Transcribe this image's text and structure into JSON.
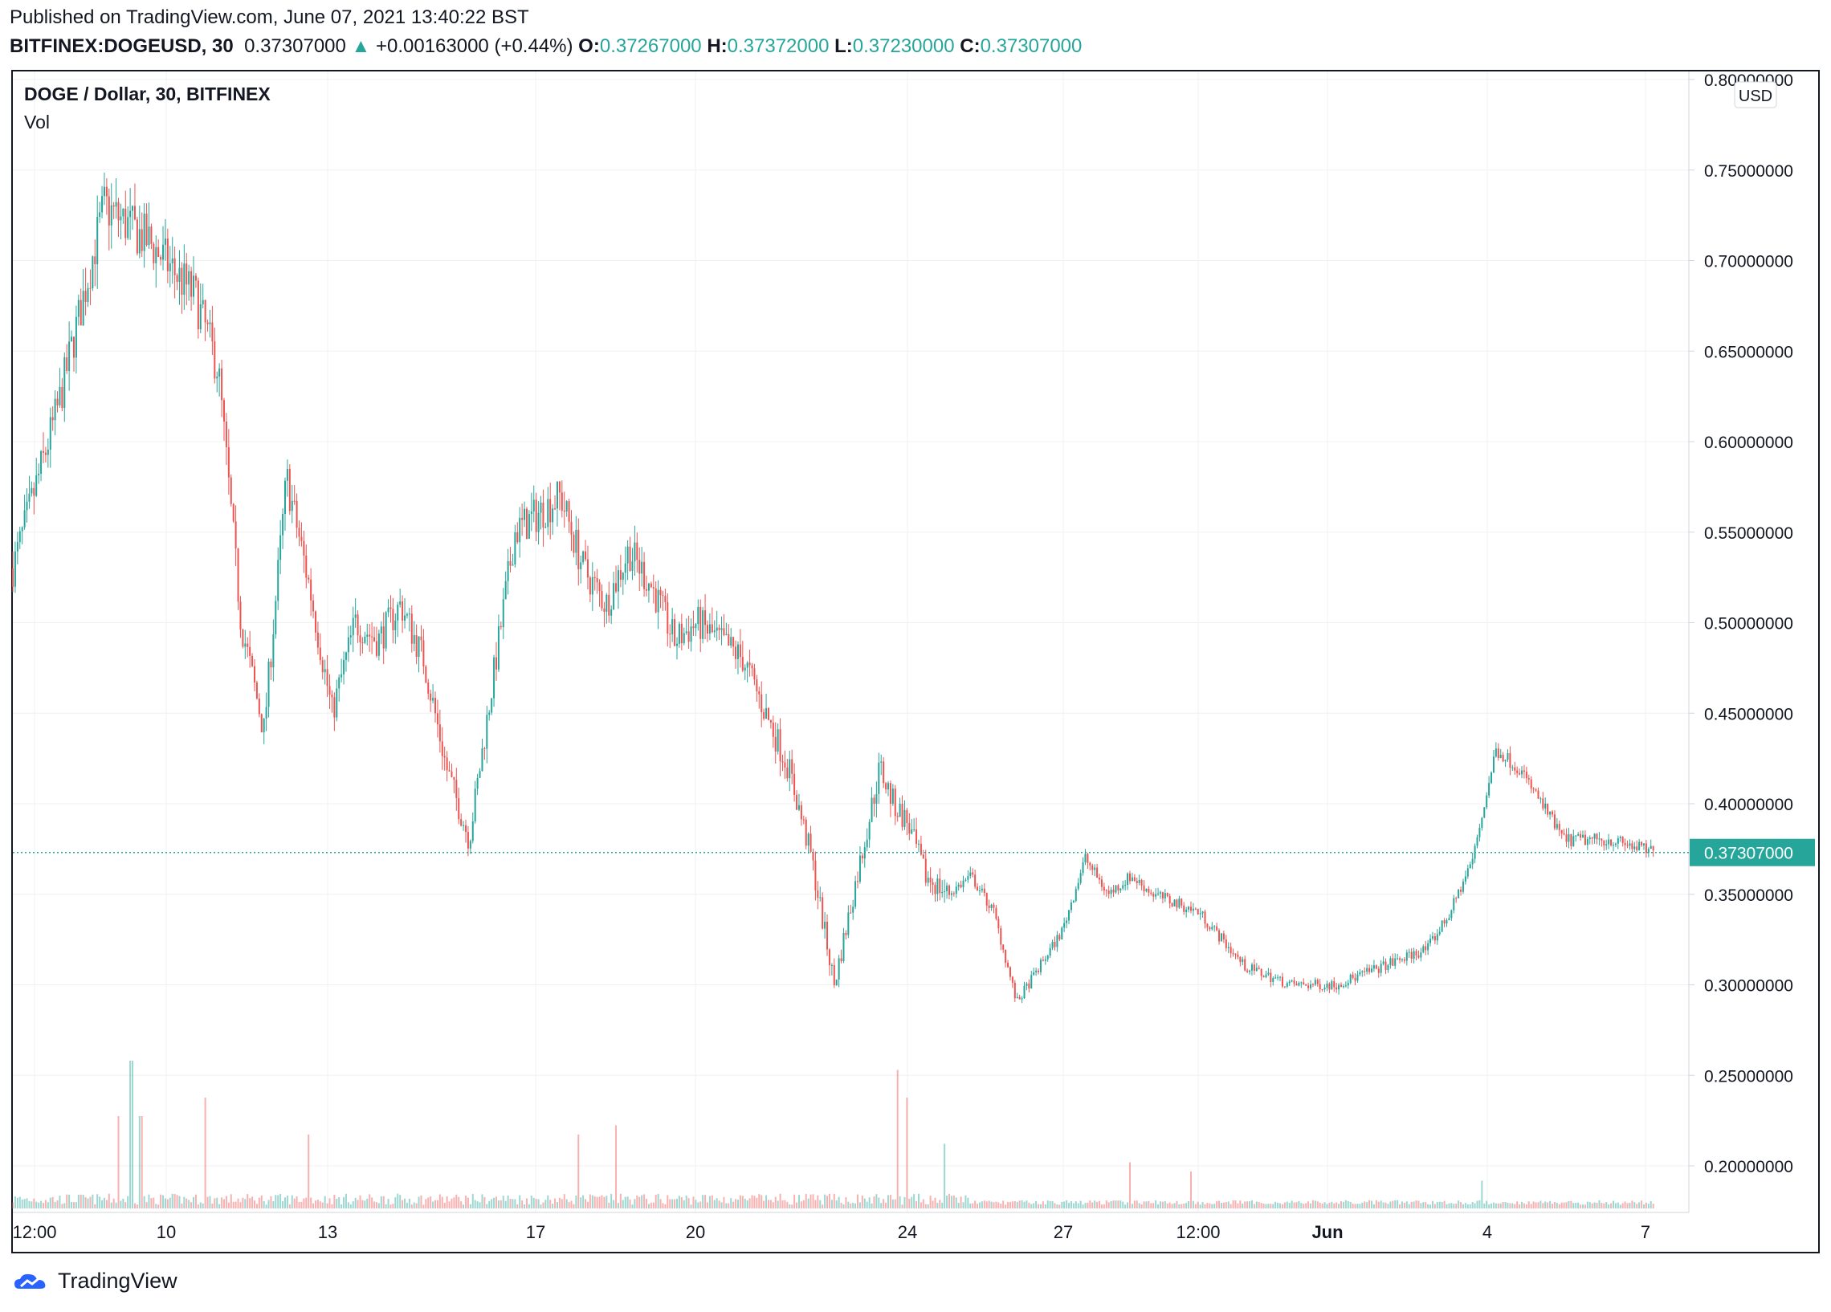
{
  "header": {
    "published": "Published on TradingView.com, June 07, 2021 13:40:22 BST",
    "symbol": "BITFINEX:DOGEUSD, 30",
    "last": "0.37307000",
    "change_arrow": "▲",
    "change": "+0.00163000 (+0.44%)",
    "o_label": "O:",
    "o_value": "0.37267000",
    "h_label": "H:",
    "h_value": "0.37372000",
    "l_label": "L:",
    "l_value": "0.37230000",
    "c_label": "C:",
    "c_value": "0.37307000"
  },
  "chart_title": "DOGE / Dollar, 30, BITFINEX",
  "volume_label": "Vol",
  "currency_badge": "USD",
  "last_price_label": "0.37307000",
  "footer": {
    "brand": "TradingView",
    "logo_icon": "tradingview-logo-icon"
  },
  "colors": {
    "up": "#26a69a",
    "down": "#ef5350",
    "grid": "#eef0f4",
    "axis_text": "#131722"
  },
  "chart_data": {
    "type": "candlestick",
    "title": "DOGE / Dollar, 30, BITFINEX",
    "ylim": [
      0.18,
      0.8
    ],
    "y_ticks": [
      "0.80000000",
      "0.75000000",
      "0.70000000",
      "0.65000000",
      "0.60000000",
      "0.55000000",
      "0.50000000",
      "0.45000000",
      "0.40000000",
      "0.35000000",
      "0.30000000",
      "0.25000000",
      "0.20000000"
    ],
    "x_ticks": [
      "12:00",
      "10",
      "13",
      "17",
      "20",
      "24",
      "27",
      "12:00",
      "Jun",
      "4",
      "7"
    ],
    "last_price": 0.37307,
    "grid": true,
    "price_path": {
      "t": [
        0,
        1,
        2,
        3,
        4,
        4.5,
        5,
        5.5,
        6,
        6.5,
        7,
        7.5,
        8,
        8.5,
        9,
        9.5,
        10,
        11,
        12,
        12.5,
        13,
        13.5,
        14,
        14.5,
        15,
        15.5,
        16,
        17,
        17.5,
        18,
        18.5,
        19,
        19.3,
        19.6,
        20,
        20.5,
        21,
        21.5,
        22,
        23,
        23.5,
        24,
        24.5,
        25,
        26,
        27,
        28,
        29,
        30,
        31,
        31.5,
        32,
        32.5,
        33,
        34,
        35,
        36
      ],
      "close": [
        0.53,
        0.62,
        0.73,
        0.71,
        0.68,
        0.64,
        0.5,
        0.44,
        0.58,
        0.52,
        0.45,
        0.5,
        0.49,
        0.51,
        0.48,
        0.42,
        0.38,
        0.55,
        0.57,
        0.53,
        0.51,
        0.54,
        0.52,
        0.49,
        0.5,
        0.49,
        0.48,
        0.42,
        0.37,
        0.3,
        0.36,
        0.42,
        0.4,
        0.39,
        0.36,
        0.35,
        0.36,
        0.34,
        0.29,
        0.33,
        0.37,
        0.35,
        0.36,
        0.35,
        0.34,
        0.31,
        0.3,
        0.3,
        0.31,
        0.32,
        0.34,
        0.37,
        0.43,
        0.42,
        0.38,
        0.38,
        0.373
      ]
    },
    "volume_spikes": [
      {
        "t": 2.3,
        "v": 0.1
      },
      {
        "t": 2.6,
        "v": 0.16
      },
      {
        "t": 2.8,
        "v": 0.1
      },
      {
        "t": 4.2,
        "v": 0.12
      },
      {
        "t": 6.5,
        "v": 0.08
      },
      {
        "t": 12.4,
        "v": 0.08
      },
      {
        "t": 13.2,
        "v": 0.09
      },
      {
        "t": 19.4,
        "v": 0.15
      },
      {
        "t": 19.6,
        "v": 0.12
      },
      {
        "t": 20.4,
        "v": 0.07
      },
      {
        "t": 24.5,
        "v": 0.05
      },
      {
        "t": 25.8,
        "v": 0.04
      },
      {
        "t": 32.2,
        "v": 0.03
      }
    ]
  }
}
